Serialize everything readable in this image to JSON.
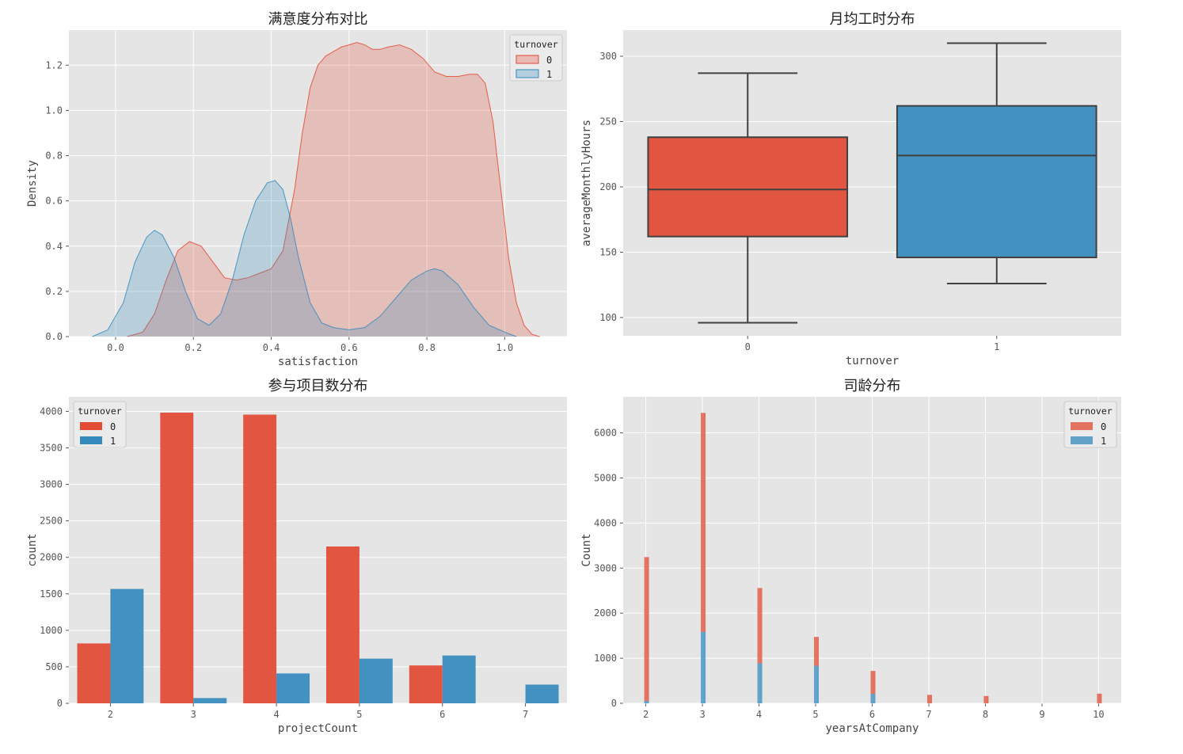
{
  "chart_data": [
    {
      "id": "satisfaction",
      "type": "area",
      "title": "满意度分布对比",
      "xlabel": "satisfaction",
      "ylabel": "Density",
      "xlim": [
        -0.12,
        1.16
      ],
      "ylim": [
        0,
        1.355
      ],
      "xticks": [
        0.0,
        0.2,
        0.4,
        0.6,
        0.8,
        1.0
      ],
      "xtick_labels": [
        "0.0",
        "0.2",
        "0.4",
        "0.6",
        "0.8",
        "1.0"
      ],
      "yticks": [
        0.0,
        0.2,
        0.4,
        0.6,
        0.8,
        1.0,
        1.2
      ],
      "ytick_labels": [
        "0.0",
        "0.2",
        "0.4",
        "0.6",
        "0.8",
        "1.0",
        "1.2"
      ],
      "grid": true,
      "legend": {
        "title": "turnover",
        "position": "top-right",
        "entries": [
          "0",
          "1"
        ]
      },
      "series": [
        {
          "name": "0",
          "color": "#E24A33",
          "x": [
            0.03,
            0.07,
            0.1,
            0.13,
            0.16,
            0.19,
            0.22,
            0.25,
            0.28,
            0.31,
            0.34,
            0.37,
            0.4,
            0.43,
            0.46,
            0.48,
            0.5,
            0.52,
            0.54,
            0.56,
            0.58,
            0.6,
            0.62,
            0.64,
            0.66,
            0.68,
            0.7,
            0.73,
            0.76,
            0.79,
            0.82,
            0.85,
            0.88,
            0.91,
            0.93,
            0.95,
            0.97,
            0.99,
            1.01,
            1.03,
            1.05,
            1.07,
            1.09
          ],
          "y": [
            0.0,
            0.02,
            0.1,
            0.25,
            0.38,
            0.42,
            0.4,
            0.33,
            0.26,
            0.25,
            0.26,
            0.28,
            0.3,
            0.38,
            0.65,
            0.9,
            1.1,
            1.2,
            1.24,
            1.26,
            1.28,
            1.29,
            1.3,
            1.29,
            1.27,
            1.27,
            1.28,
            1.29,
            1.27,
            1.23,
            1.17,
            1.15,
            1.15,
            1.16,
            1.16,
            1.12,
            0.95,
            0.65,
            0.35,
            0.15,
            0.05,
            0.01,
            0.0
          ]
        },
        {
          "name": "1",
          "color": "#348ABD",
          "x": [
            -0.06,
            -0.02,
            0.02,
            0.05,
            0.08,
            0.1,
            0.12,
            0.15,
            0.18,
            0.21,
            0.24,
            0.27,
            0.3,
            0.33,
            0.36,
            0.39,
            0.41,
            0.43,
            0.45,
            0.47,
            0.5,
            0.53,
            0.56,
            0.6,
            0.64,
            0.68,
            0.72,
            0.76,
            0.8,
            0.82,
            0.84,
            0.88,
            0.92,
            0.96,
            1.0,
            1.03
          ],
          "y": [
            0.0,
            0.03,
            0.15,
            0.33,
            0.44,
            0.47,
            0.45,
            0.35,
            0.2,
            0.08,
            0.05,
            0.1,
            0.25,
            0.45,
            0.6,
            0.68,
            0.69,
            0.65,
            0.52,
            0.35,
            0.15,
            0.06,
            0.04,
            0.03,
            0.04,
            0.09,
            0.17,
            0.25,
            0.29,
            0.3,
            0.29,
            0.23,
            0.13,
            0.05,
            0.02,
            0.0
          ]
        }
      ]
    },
    {
      "id": "monthly_hours",
      "type": "box",
      "title": "月均工时分布",
      "xlabel": "turnover",
      "ylabel": "averageMonthlyHours",
      "categories": [
        "0",
        "1"
      ],
      "ylim": [
        86,
        320
      ],
      "yticks": [
        100,
        150,
        200,
        250,
        300
      ],
      "ytick_labels": [
        "100",
        "150",
        "200",
        "250",
        "300"
      ],
      "grid": true,
      "boxes": [
        {
          "category": "0",
          "color": "#E24A33",
          "whisker_low": 96,
          "q1": 162,
          "median": 198,
          "q3": 238,
          "whisker_high": 287
        },
        {
          "category": "1",
          "color": "#348ABD",
          "whisker_low": 126,
          "q1": 146,
          "median": 224,
          "q3": 262,
          "whisker_high": 310
        }
      ]
    },
    {
      "id": "project_count",
      "type": "bar",
      "title": "参与项目数分布",
      "xlabel": "projectCount",
      "ylabel": "count",
      "categories": [
        "2",
        "3",
        "4",
        "5",
        "6",
        "7"
      ],
      "ylim": [
        0,
        4200
      ],
      "yticks": [
        0,
        500,
        1000,
        1500,
        2000,
        2500,
        3000,
        3500,
        4000
      ],
      "ytick_labels": [
        "0",
        "500",
        "1000",
        "1500",
        "2000",
        "2500",
        "3000",
        "3500",
        "4000"
      ],
      "grid": true,
      "legend": {
        "title": "turnover",
        "position": "top-left",
        "entries": [
          "0",
          "1"
        ]
      },
      "series": [
        {
          "name": "0",
          "color": "#E24A33",
          "values": [
            821,
            3983,
            3956,
            2149,
            519,
            0
          ]
        },
        {
          "name": "1",
          "color": "#348ABD",
          "values": [
            1567,
            72,
            409,
            612,
            655,
            256
          ]
        }
      ]
    },
    {
      "id": "years_at_company",
      "type": "bar",
      "stacked": true,
      "title": "司龄分布",
      "xlabel": "yearsAtCompany",
      "ylabel": "Count",
      "x": [
        2,
        3,
        4,
        5,
        6,
        7,
        8,
        10
      ],
      "xlim": [
        1.6,
        10.4
      ],
      "ylim": [
        0,
        6800
      ],
      "xticks": [
        2,
        3,
        4,
        5,
        6,
        7,
        8,
        9,
        10
      ],
      "xtick_labels": [
        "2",
        "3",
        "4",
        "5",
        "6",
        "7",
        "8",
        "9",
        "10"
      ],
      "yticks": [
        0,
        1000,
        2000,
        3000,
        4000,
        5000,
        6000
      ],
      "ytick_labels": [
        "0",
        "1000",
        "2000",
        "3000",
        "4000",
        "5000",
        "6000"
      ],
      "grid": true,
      "legend": {
        "title": "turnover",
        "position": "top-right",
        "entries": [
          "0",
          "1"
        ]
      },
      "series": [
        {
          "name": "0",
          "color": "#E24A33",
          "values": [
            3191,
            4857,
            1667,
            640,
            509,
            188,
            162,
            214
          ]
        },
        {
          "name": "1",
          "color": "#348ABD",
          "values": [
            53,
            1586,
            890,
            833,
            209,
            0,
            0,
            0
          ]
        }
      ]
    }
  ]
}
